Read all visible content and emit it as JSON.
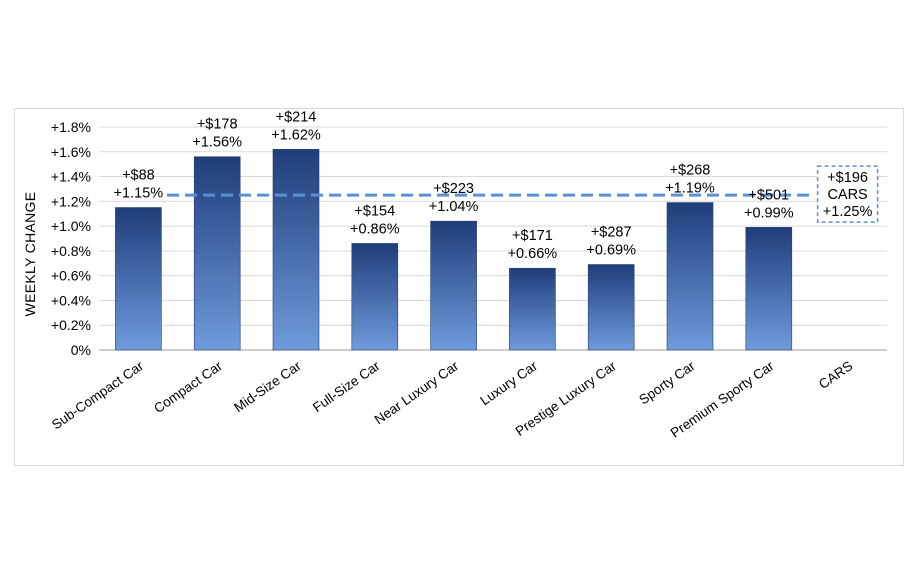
{
  "chart_data": {
    "type": "bar",
    "ylabel": "WEEKLY CHANGE",
    "xlabel": "",
    "ylim": [
      0,
      1.8
    ],
    "yticks": [
      "0%",
      "+0.2%",
      "+0.4%",
      "+0.6%",
      "+0.8%",
      "+1.0%",
      "+1.2%",
      "+1.4%",
      "+1.6%",
      "+1.8%"
    ],
    "grid": true,
    "categories": [
      "Sub-Compact Car",
      "Compact Car",
      "Mid-Size Car",
      "Full-Size Car",
      "Near Luxury Car",
      "Luxury Car",
      "Prestige Luxury Car",
      "Sporty Car",
      "Premium Sporty Car",
      "CARS"
    ],
    "values": [
      1.15,
      1.56,
      1.62,
      0.86,
      1.04,
      0.66,
      0.69,
      1.19,
      0.99,
      null
    ],
    "dollar_labels": [
      "+$88",
      "+$178",
      "+$214",
      "+$154",
      "+$223",
      "+$171",
      "+$287",
      "+$268",
      "+$501"
    ],
    "pct_labels": [
      "+1.15%",
      "+1.56%",
      "+1.62%",
      "+0.86%",
      "+1.04%",
      "+0.66%",
      "+0.69%",
      "+1.19%",
      "+0.99%"
    ],
    "reference": {
      "value": 1.25,
      "lines": [
        "+$196",
        "CARS",
        "+1.25%"
      ]
    },
    "colors": {
      "bar_top": "#1f3d7a",
      "bar_bottom": "#6f9bdc",
      "reference_line": "#5b8fd6",
      "grid": "#d9d9d9"
    }
  }
}
